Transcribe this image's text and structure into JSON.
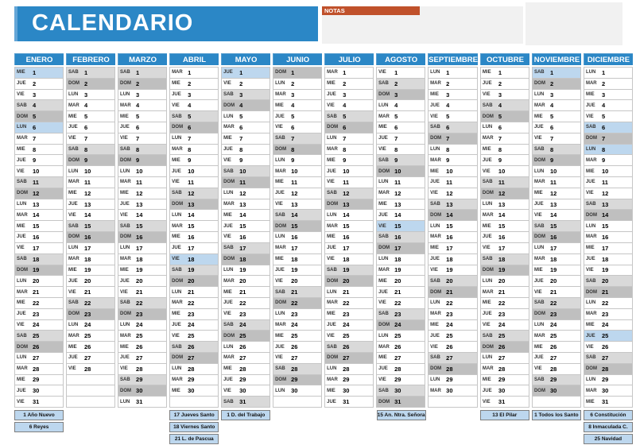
{
  "title": "CALENDARIO",
  "notes_label": "NOTAS",
  "weekdays": [
    "LUN",
    "MAR",
    "MIE",
    "JUE",
    "VIE",
    "SAB",
    "DOM"
  ],
  "rows_per_column": 31,
  "months": [
    {
      "name": "ENERO",
      "days": 31,
      "start": "MIE",
      "holidays": [
        1,
        6
      ]
    },
    {
      "name": "FEBRERO",
      "days": 28,
      "start": "SAB",
      "holidays": []
    },
    {
      "name": "MARZO",
      "days": 31,
      "start": "SAB",
      "holidays": []
    },
    {
      "name": "ABRIL",
      "days": 30,
      "start": "MAR",
      "holidays": [
        18
      ]
    },
    {
      "name": "MAYO",
      "days": 31,
      "start": "JUE",
      "holidays": [
        1
      ]
    },
    {
      "name": "JUNIO",
      "days": 30,
      "start": "DOM",
      "holidays": []
    },
    {
      "name": "JULIO",
      "days": 31,
      "start": "MAR",
      "holidays": []
    },
    {
      "name": "AGOSTO",
      "days": 31,
      "start": "VIE",
      "holidays": [
        15
      ]
    },
    {
      "name": "SEPTIEMBRE",
      "days": 30,
      "start": "LUN",
      "holidays": []
    },
    {
      "name": "OCTUBRE",
      "days": 31,
      "start": "MIE",
      "holidays": []
    },
    {
      "name": "NOVIEMBRE",
      "days": 30,
      "start": "SAB",
      "holidays": [
        1
      ]
    },
    {
      "name": "DICIEMBRE",
      "days": 31,
      "start": "LUN",
      "holidays": [
        6,
        8,
        25
      ]
    }
  ],
  "legend": [
    {
      "month": "ENERO",
      "items": [
        "1 Año Nuevo",
        "6 Reyes"
      ]
    },
    {
      "month": "ABRIL",
      "items": [
        "17 Jueves Santo",
        "18 Viernes Santo",
        "21 L. de Pascua"
      ]
    },
    {
      "month": "MAYO",
      "items": [
        "1 D. del Trabajo"
      ]
    },
    {
      "month": "AGOSTO",
      "items": [
        "15 An. Ntra. Señora"
      ]
    },
    {
      "month": "OCTUBRE",
      "items": [
        "13 El Pilar"
      ]
    },
    {
      "month": "NOVIEMBRE",
      "items": [
        "1 Todos los Santo"
      ]
    },
    {
      "month": "DICIEMBRE",
      "items": [
        "6 Constitución",
        "8 Inmaculada C.",
        "25 Navidad"
      ]
    }
  ],
  "colors": {
    "header_blue": "#2b87c6",
    "holiday_blue": "#bdd7ee",
    "saturday_gray": "#d9d9d9",
    "sunday_gray": "#bfbfbf",
    "notes_orange": "#c0512b",
    "notes_panel_gray": "#f1f1f1",
    "cell_border": "#c6c6c6"
  }
}
